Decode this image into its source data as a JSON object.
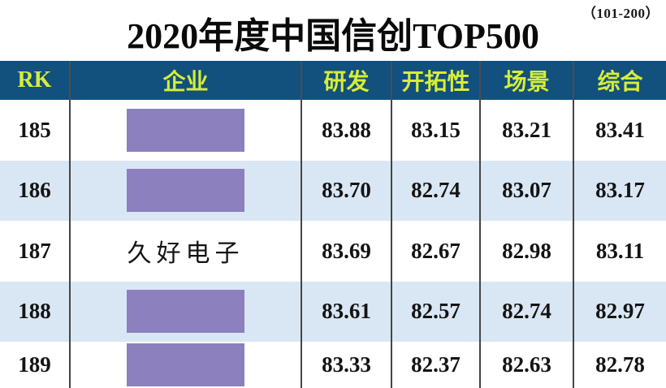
{
  "page": {
    "range_label": "（101-200）",
    "title": "2020年度中国信创TOP500"
  },
  "colors": {
    "header_bg": "#12507D",
    "header_text": "#D6EE35",
    "row_alt_bg": "#D9E7F5",
    "redaction_box": "#8C80BE",
    "grid_line": "#454545",
    "body_text": "#141414"
  },
  "chart_data": {
    "type": "table",
    "title": "2020年度中国信创TOP500",
    "subtitle": "（101-200）",
    "columns": [
      {
        "key": "rk",
        "label": "RK"
      },
      {
        "key": "company",
        "label": "企业"
      },
      {
        "key": "rd",
        "label": "研发"
      },
      {
        "key": "pioneering",
        "label": "开拓性"
      },
      {
        "key": "scenario",
        "label": "场景"
      },
      {
        "key": "overall",
        "label": "综合"
      }
    ],
    "rows": [
      {
        "rk": "185",
        "company": "",
        "company_redacted": true,
        "rd": "83.88",
        "pioneering": "83.15",
        "scenario": "83.21",
        "overall": "83.41"
      },
      {
        "rk": "186",
        "company": "",
        "company_redacted": true,
        "rd": "83.70",
        "pioneering": "82.74",
        "scenario": "83.07",
        "overall": "83.17"
      },
      {
        "rk": "187",
        "company": "久好电子",
        "company_redacted": false,
        "rd": "83.69",
        "pioneering": "82.67",
        "scenario": "82.98",
        "overall": "83.11"
      },
      {
        "rk": "188",
        "company": "",
        "company_redacted": true,
        "rd": "83.61",
        "pioneering": "82.57",
        "scenario": "82.74",
        "overall": "82.97"
      },
      {
        "rk": "189",
        "company": "",
        "company_redacted": true,
        "rd": "83.33",
        "pioneering": "82.37",
        "scenario": "82.63",
        "overall": "82.78"
      }
    ]
  }
}
